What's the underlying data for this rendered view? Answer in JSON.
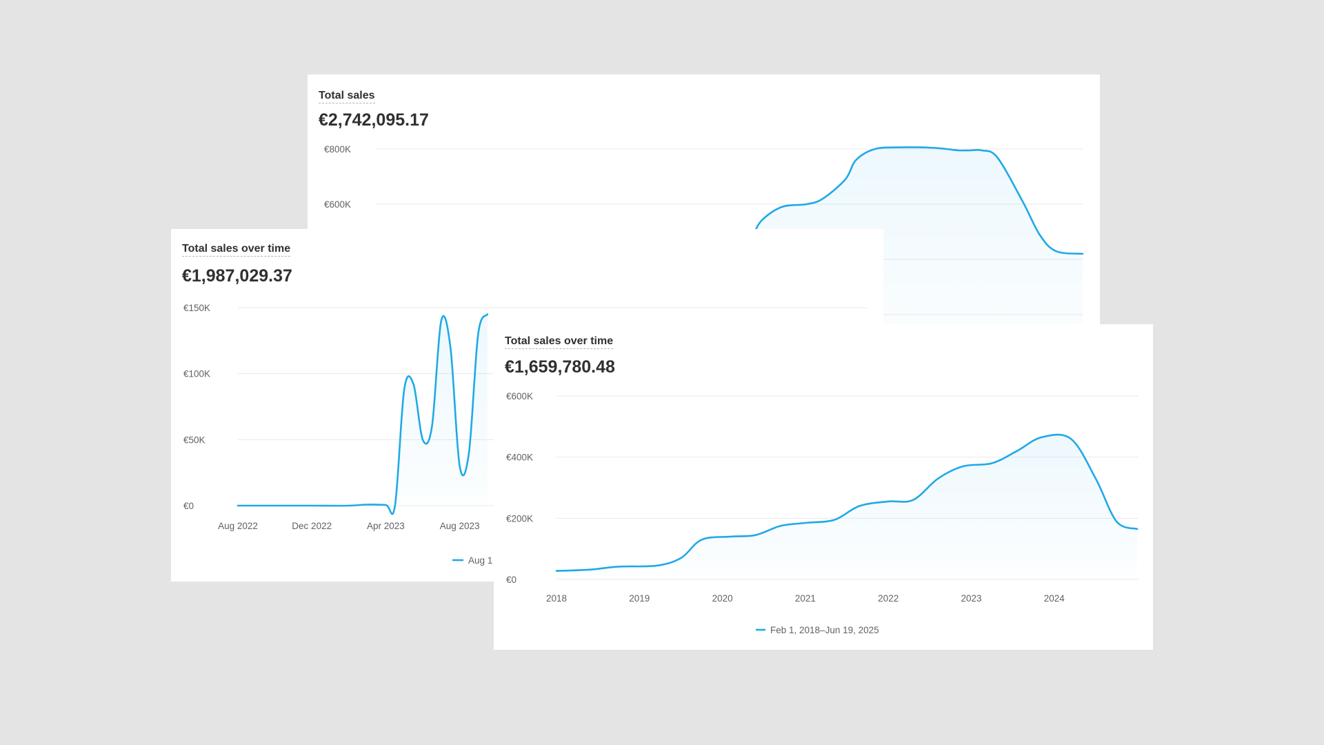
{
  "cards": [
    {
      "id": "back",
      "title": "Total sales",
      "total": "€2,742,095.17",
      "chart_data": {
        "type": "line",
        "title": "Total sales",
        "y_ticks": [
          "€800K",
          "€600K"
        ],
        "ylim": [
          0,
          850000
        ],
        "x_range": [
          0,
          100
        ],
        "grid": true,
        "series": [
          {
            "x": [
              50.0,
              52.8,
              54.5,
              57.4,
              60.9,
              63.2,
              66.4,
              67.9,
              70.6,
              74.3,
              78.3,
              80.7,
              82.4,
              84.1,
              85.7,
              87.9,
              91.5,
              93.9,
              96.2,
              100.0
            ],
            "values": [
              420000,
              470000,
              540000,
              590000,
              600000,
              620000,
              690000,
              760000,
              800000,
              806000,
              805000,
              800000,
              795000,
              795000,
              795000,
              770000,
              610000,
              490000,
              430000,
              420000
            ]
          }
        ]
      }
    },
    {
      "id": "mid",
      "title": "Total sales over time",
      "total": "€1,987,029.37",
      "legend": "Aug 1",
      "chart_data": {
        "type": "line",
        "title": "Total sales over time",
        "x_ticks": [
          "Aug 2022",
          "Dec 2022",
          "Apr 2023",
          "Aug 2023"
        ],
        "y_ticks": [
          "€150K",
          "€100K",
          "€50K",
          "€0"
        ],
        "ylim": [
          0,
          150000
        ],
        "grid": true,
        "legend": "Aug 1",
        "series": [
          {
            "x": [
              0,
              2,
              4,
              6,
              7,
              8,
              8.5,
              9,
              9.5,
              10,
              10.5,
              11,
              11.5,
              12,
              12.5,
              13,
              13.5
            ],
            "values": [
              0,
              0,
              0,
              0,
              800,
              500,
              0,
              88000,
              92000,
              50000,
              60000,
              140000,
              120000,
              30000,
              40000,
              130000,
              145000
            ]
          }
        ]
      }
    },
    {
      "id": "front",
      "title": "Total sales over time",
      "total": "€1,659,780.48",
      "legend": "Feb 1, 2018–Jun 19, 2025",
      "chart_data": {
        "type": "line",
        "title": "Total sales over time",
        "x_ticks": [
          "2018",
          "2019",
          "2020",
          "2021",
          "2022",
          "2023",
          "2024"
        ],
        "y_ticks": [
          "€600K",
          "€400K",
          "€200K",
          "€0"
        ],
        "ylim": [
          0,
          600000
        ],
        "grid": true,
        "legend": "Feb 1, 2018–Jun 19, 2025",
        "series": [
          {
            "x": [
              2018.0,
              2018.4,
              2018.75,
              2019.2,
              2019.5,
              2019.75,
              2020.1,
              2020.4,
              2020.7,
              2021.0,
              2021.35,
              2021.65,
              2022.0,
              2022.3,
              2022.6,
              2022.9,
              2023.25,
              2023.55,
              2023.85,
              2024.2,
              2024.5,
              2024.75,
              2025.0
            ],
            "values": [
              28000,
              32000,
              42000,
              45000,
              70000,
              130000,
              140000,
              145000,
              175000,
              185000,
              195000,
              240000,
              255000,
              260000,
              330000,
              370000,
              380000,
              420000,
              465000,
              460000,
              330000,
              190000,
              165000
            ]
          }
        ]
      }
    }
  ]
}
